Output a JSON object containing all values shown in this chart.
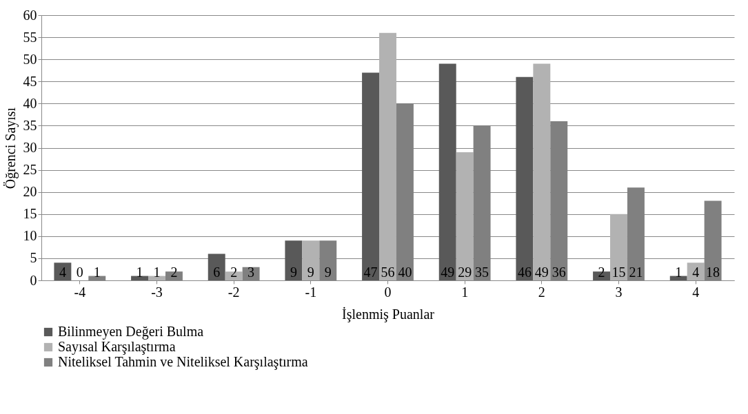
{
  "chart_data": {
    "type": "bar",
    "xlabel": "İşlenmiş Puanlar",
    "ylabel": "Öğrenci Sayısı",
    "categories": [
      "-4",
      "-3",
      "-2",
      "-1",
      "0",
      "1",
      "2",
      "3",
      "4"
    ],
    "series": [
      {
        "name": "Bilinmeyen Değeri Bulma",
        "color": "#595959",
        "values": [
          4,
          1,
          6,
          9,
          47,
          49,
          46,
          2,
          1
        ]
      },
      {
        "name": "Sayısal Karşılaştırma",
        "color": "#b2b2b2",
        "values": [
          0,
          1,
          2,
          9,
          56,
          29,
          49,
          15,
          4
        ]
      },
      {
        "name": "Niteliksel Tahmin ve Niteliksel Karşılaştırma",
        "color": "#808080",
        "values": [
          1,
          2,
          3,
          9,
          40,
          35,
          36,
          21,
          18
        ]
      }
    ],
    "ylim": [
      0,
      60
    ],
    "yticks": [
      0,
      5,
      10,
      15,
      20,
      25,
      30,
      35,
      40,
      45,
      50,
      55,
      60
    ],
    "grid": "y",
    "legend": "bottom",
    "data_labels": true
  }
}
